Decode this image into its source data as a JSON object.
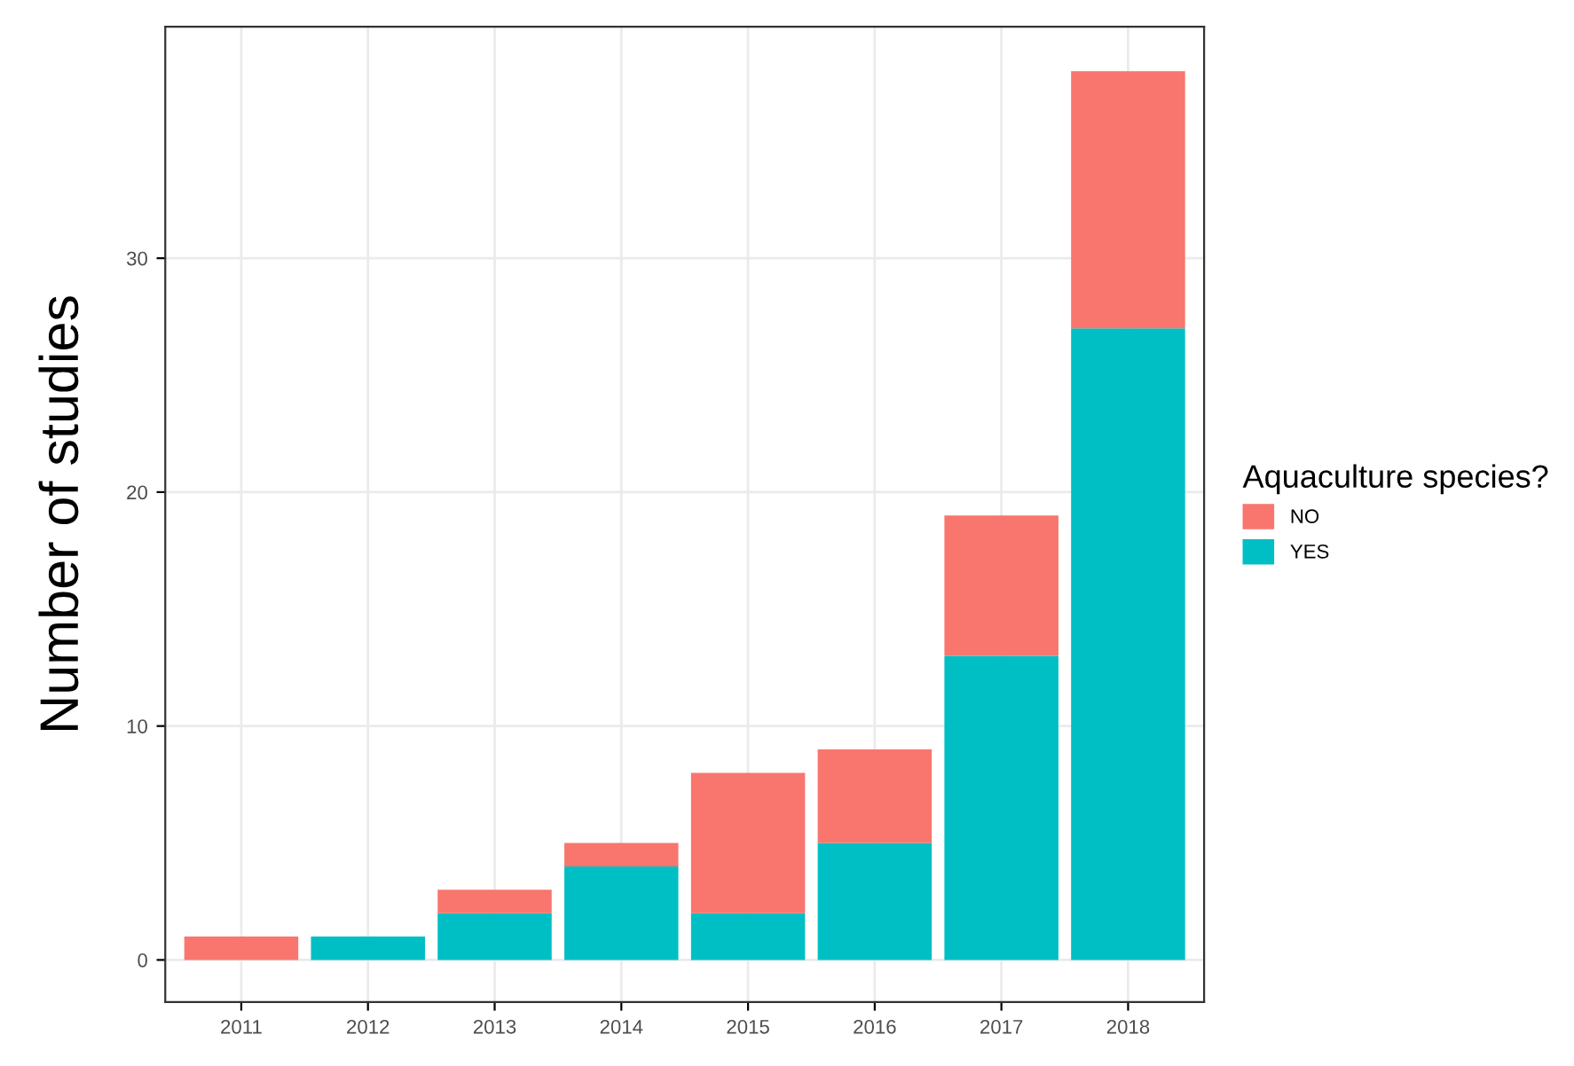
{
  "chart_data": {
    "type": "bar",
    "stacked": true,
    "ylabel": "Number of studies",
    "legend_title": "Aquaculture species?",
    "legend": "right",
    "grid": true,
    "categories": [
      "2011",
      "2012",
      "2013",
      "2014",
      "2015",
      "2016",
      "2017",
      "2018"
    ],
    "series": [
      {
        "name": "YES",
        "color": "#00bfc4",
        "values": [
          0,
          1,
          2,
          4,
          2,
          5,
          13,
          27
        ]
      },
      {
        "name": "NO",
        "color": "#f8766d",
        "values": [
          1,
          0,
          1,
          1,
          6,
          4,
          6,
          11
        ]
      }
    ],
    "ylim": [
      -1.8,
      39.9
    ],
    "yticks": [
      0,
      10,
      20,
      30
    ]
  }
}
